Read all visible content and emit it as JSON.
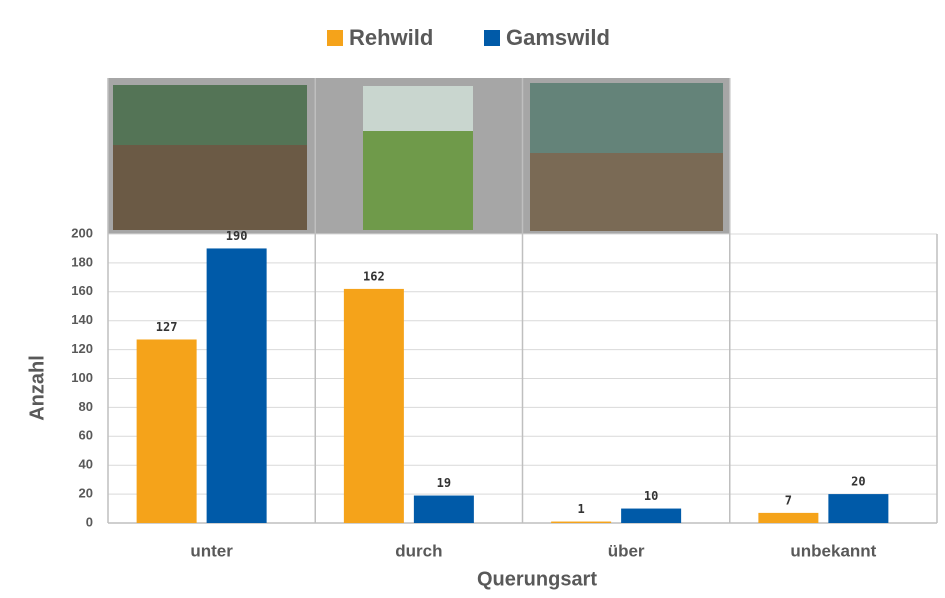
{
  "chart_data": {
    "type": "bar",
    "categories": [
      "unter",
      "durch",
      "über",
      "unbekannt"
    ],
    "series": [
      {
        "name": "Rehwild",
        "color": "#f5a31a",
        "values": [
          127,
          162,
          1,
          7
        ]
      },
      {
        "name": "Gamswild",
        "color": "#005aa8",
        "values": [
          190,
          19,
          10,
          20
        ]
      }
    ],
    "x_label": "Querungsart",
    "y_label": "Anzahl",
    "ylim": [
      0,
      200
    ],
    "yticks": [
      0,
      20,
      40,
      60,
      80,
      100,
      120,
      140,
      160,
      180,
      200
    ],
    "grid": true,
    "legend": "top"
  }
}
